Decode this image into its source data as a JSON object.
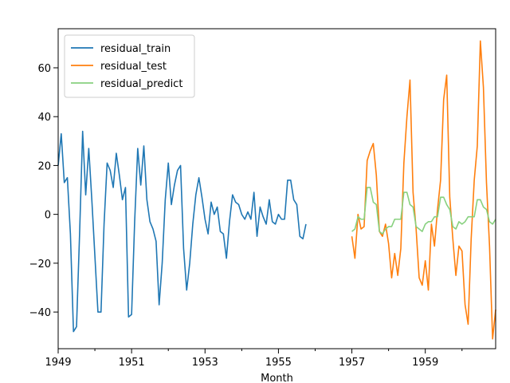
{
  "chart_data": {
    "type": "line",
    "xlabel": "Month",
    "ylabel": "",
    "x_ticks": [
      {
        "label": "1949",
        "value": 1949
      },
      {
        "label": "1951",
        "value": 1951
      },
      {
        "label": "1953",
        "value": 1953
      },
      {
        "label": "1955",
        "value": 1955
      },
      {
        "label": "1957",
        "value": 1957
      },
      {
        "label": "1959",
        "value": 1959
      }
    ],
    "y_ticks": [
      -40,
      -20,
      0,
      20,
      40,
      60
    ],
    "xlim": [
      1949.0,
      1960.9167
    ],
    "ylim": [
      -55,
      76
    ],
    "grid": false,
    "legend_position": "top-left",
    "series": [
      {
        "name": "residual_train",
        "color": "#1f77b4",
        "x_start": 1949.0,
        "step": 0.083333,
        "values": [
          20,
          33,
          13,
          15,
          -8,
          -48,
          -46,
          -8,
          34,
          8,
          27,
          6,
          -17,
          -40,
          -40,
          -4,
          21,
          18,
          11,
          25,
          16,
          6,
          11,
          -42,
          -41,
          -3,
          27,
          12,
          28,
          6,
          -3,
          -6,
          -11,
          -37,
          -20,
          6,
          21,
          4,
          12,
          18,
          20,
          -14,
          -31,
          -20,
          -4,
          8,
          15,
          7,
          -2,
          -8,
          5,
          0,
          3,
          -7,
          -8,
          -18,
          -3,
          8,
          5,
          4,
          0,
          -2,
          1,
          -2,
          9,
          -9,
          3,
          -1,
          -4,
          6,
          -3,
          -4,
          0,
          -2,
          -2,
          14,
          14,
          6,
          4,
          -9,
          -10,
          -4
        ]
      },
      {
        "name": "residual_test",
        "color": "#ff7f0e",
        "x_start": 1957.0,
        "step": 0.083333,
        "values": [
          -9,
          -18,
          0,
          -6,
          -5,
          22,
          26,
          29,
          16,
          -7,
          -9,
          -4,
          -12,
          -26,
          -16,
          -25,
          -14,
          21,
          40,
          55,
          9,
          -6,
          -26,
          -29,
          -19,
          -31,
          -4,
          -13,
          2,
          14,
          47,
          57,
          7,
          -10,
          -25,
          -13,
          -15,
          -37,
          -45,
          -10,
          14,
          28,
          71,
          52,
          13,
          -13,
          -51,
          -39
        ]
      },
      {
        "name": "residual_predict",
        "color": "#88d17f",
        "x_start": 1957.0,
        "step": 0.083333,
        "values": [
          -7,
          -6,
          -1,
          -2,
          -2,
          11,
          11,
          5,
          4,
          -7,
          -8,
          -6,
          -5,
          -5,
          -2,
          -2,
          -2,
          9,
          9,
          4,
          3,
          -5,
          -6,
          -7,
          -4,
          -3,
          -3,
          -1,
          -1,
          7,
          7,
          4,
          2,
          -5,
          -6,
          -3,
          -4,
          -3,
          -1,
          -1,
          -1,
          6,
          6,
          3,
          2,
          -3,
          -4,
          -2
        ]
      }
    ]
  }
}
